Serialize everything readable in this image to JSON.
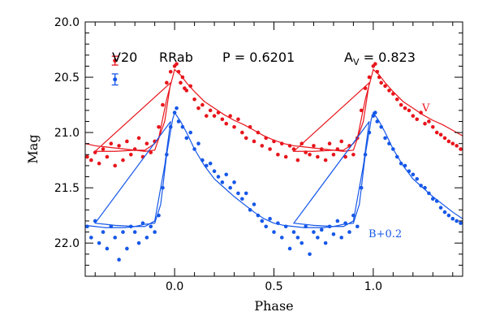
{
  "chart_data": {
    "type": "scatter",
    "header": {
      "star": "V20",
      "type": "RRab",
      "period": "P = 0.6201",
      "amp_label": "A",
      "amp_sub": "V",
      "amp_value": " = 0.823"
    },
    "xlabel": "Phase",
    "ylabel": "Mag",
    "xlim": [
      -0.45,
      1.45
    ],
    "ylim": [
      20.0,
      22.3
    ],
    "y_inverted": true,
    "x_ticks": [
      0.0,
      0.5,
      1.0
    ],
    "x_tick_labels": [
      "0.0",
      "0.5",
      "1.0"
    ],
    "y_ticks": [
      20.0,
      20.5,
      21.0,
      21.5,
      22.0
    ],
    "y_tick_labels": [
      "20.0",
      "20.5",
      "21.0",
      "21.5",
      "22.0"
    ],
    "series": [
      {
        "name": "V",
        "color": "#e8141b",
        "error_bar": {
          "x": -0.3,
          "y": 20.35,
          "err": 0.04
        },
        "template": {
          "x": [
            -0.4,
            -0.3,
            -0.2,
            -0.15,
            -0.1,
            -0.08,
            -0.04,
            -0.01,
            0.0,
            0.03,
            0.06,
            0.1,
            0.15,
            0.2,
            0.25,
            0.3,
            0.35,
            0.4,
            0.45,
            0.5,
            0.55,
            0.6,
            0.65,
            0.7,
            0.75,
            0.8,
            0.85,
            0.9,
            0.95,
            0.98
          ],
          "y": [
            21.17,
            21.17,
            21.16,
            21.16,
            21.1,
            21.05,
            20.7,
            20.5,
            20.43,
            20.48,
            20.55,
            20.63,
            20.72,
            20.78,
            20.84,
            20.89,
            20.93,
            20.98,
            21.03,
            21.07,
            21.1,
            21.12,
            21.13,
            21.14,
            21.15,
            21.16,
            21.17,
            21.16,
            20.9,
            20.55
          ]
        },
        "points": {
          "x": [
            -0.44,
            -0.42,
            -0.4,
            -0.38,
            -0.36,
            -0.34,
            -0.32,
            -0.3,
            -0.28,
            -0.26,
            -0.24,
            -0.22,
            -0.2,
            -0.18,
            -0.16,
            -0.14,
            -0.12,
            -0.1,
            -0.08,
            -0.06,
            -0.04,
            -0.02,
            0.0,
            0.01,
            0.02,
            0.03,
            0.04,
            0.05,
            0.06,
            0.08,
            0.1,
            0.12,
            0.14,
            0.16,
            0.18,
            0.2,
            0.22,
            0.24,
            0.26,
            0.28,
            0.3,
            0.32,
            0.34,
            0.36,
            0.38,
            0.4,
            0.42,
            0.44,
            0.46,
            0.48,
            0.5,
            0.52,
            0.54,
            0.56,
            0.58,
            0.6,
            0.62,
            0.64,
            0.66,
            0.68,
            0.7,
            0.72,
            0.74,
            0.76,
            0.78,
            0.8,
            0.82,
            0.84,
            0.86,
            0.88,
            0.9,
            0.92,
            0.94,
            0.96,
            0.98,
            1.0,
            1.01,
            1.02,
            1.03,
            1.04,
            1.06,
            1.08,
            1.1,
            1.12,
            1.14,
            1.16,
            1.18,
            1.2,
            1.22,
            1.24,
            1.26,
            1.28,
            1.3,
            1.32,
            1.34,
            1.36,
            1.38,
            1.4,
            1.42,
            1.44
          ],
          "y": [
            21.22,
            21.25,
            21.18,
            21.28,
            21.15,
            21.22,
            21.1,
            21.3,
            21.12,
            21.25,
            21.08,
            21.2,
            21.15,
            21.05,
            21.22,
            21.1,
            21.18,
            21.08,
            20.95,
            20.75,
            20.55,
            20.45,
            20.4,
            20.38,
            20.45,
            20.55,
            20.5,
            20.6,
            20.62,
            20.58,
            20.7,
            20.78,
            20.75,
            20.85,
            20.8,
            20.85,
            20.82,
            20.88,
            20.92,
            20.85,
            20.95,
            20.88,
            21.0,
            21.05,
            20.95,
            21.08,
            21.0,
            21.12,
            21.05,
            21.15,
            21.08,
            21.2,
            21.1,
            21.22,
            21.12,
            21.15,
            21.25,
            21.1,
            21.18,
            21.2,
            21.12,
            21.22,
            21.15,
            21.25,
            21.1,
            21.2,
            21.15,
            21.08,
            21.22,
            21.12,
            21.2,
            21.05,
            20.8,
            20.6,
            20.5,
            20.4,
            20.38,
            20.45,
            20.5,
            20.55,
            20.58,
            20.62,
            20.65,
            20.7,
            20.75,
            20.78,
            20.8,
            20.85,
            20.88,
            20.82,
            20.92,
            20.9,
            20.95,
            21.0,
            21.02,
            21.05,
            21.08,
            21.1,
            21.12,
            21.15
          ]
        }
      },
      {
        "name": "B+0.2",
        "color": "#1557e8",
        "error_bar": {
          "x": -0.3,
          "y": 20.52,
          "err": 0.05
        },
        "template": {
          "x": [
            -0.4,
            -0.3,
            -0.2,
            -0.15,
            -0.1,
            -0.07,
            -0.04,
            -0.01,
            0.0,
            0.03,
            0.06,
            0.1,
            0.15,
            0.2,
            0.25,
            0.3,
            0.35,
            0.4,
            0.45,
            0.5,
            0.55,
            0.6,
            0.65,
            0.7,
            0.75,
            0.8,
            0.85,
            0.9,
            0.95,
            0.98
          ],
          "y": [
            21.82,
            21.84,
            21.85,
            21.83,
            21.82,
            21.65,
            21.2,
            20.88,
            20.82,
            20.9,
            21.0,
            21.15,
            21.3,
            21.42,
            21.5,
            21.58,
            21.65,
            21.72,
            21.78,
            21.82,
            21.84,
            21.85,
            21.86,
            21.86,
            21.86,
            21.85,
            21.85,
            21.8,
            21.3,
            20.9
          ]
        },
        "points": {
          "x": [
            -0.44,
            -0.42,
            -0.4,
            -0.38,
            -0.36,
            -0.34,
            -0.32,
            -0.3,
            -0.28,
            -0.26,
            -0.24,
            -0.22,
            -0.2,
            -0.18,
            -0.16,
            -0.14,
            -0.12,
            -0.1,
            -0.08,
            -0.06,
            -0.04,
            -0.02,
            0.0,
            0.01,
            0.02,
            0.04,
            0.06,
            0.08,
            0.1,
            0.12,
            0.14,
            0.16,
            0.18,
            0.2,
            0.22,
            0.24,
            0.26,
            0.28,
            0.3,
            0.32,
            0.34,
            0.36,
            0.38,
            0.4,
            0.42,
            0.44,
            0.46,
            0.48,
            0.5,
            0.52,
            0.54,
            0.56,
            0.58,
            0.6,
            0.62,
            0.64,
            0.66,
            0.68,
            0.7,
            0.72,
            0.74,
            0.76,
            0.78,
            0.8,
            0.82,
            0.84,
            0.86,
            0.88,
            0.9,
            0.92,
            0.94,
            0.96,
            0.98,
            1.0,
            1.01,
            1.02,
            1.04,
            1.06,
            1.08,
            1.1,
            1.12,
            1.14,
            1.16,
            1.18,
            1.2,
            1.22,
            1.24,
            1.26,
            1.28,
            1.3,
            1.32,
            1.34,
            1.36,
            1.38,
            1.4,
            1.42,
            1.44
          ],
          "y": [
            21.85,
            21.95,
            21.8,
            22.0,
            21.9,
            22.05,
            21.85,
            21.95,
            22.15,
            21.9,
            22.05,
            21.85,
            21.9,
            22.0,
            21.82,
            21.95,
            21.85,
            21.9,
            21.75,
            21.5,
            21.2,
            20.95,
            20.82,
            20.78,
            20.9,
            20.95,
            21.05,
            21.0,
            21.15,
            21.1,
            21.25,
            21.3,
            21.28,
            21.35,
            21.4,
            21.45,
            21.38,
            21.5,
            21.45,
            21.55,
            21.6,
            21.55,
            21.7,
            21.65,
            21.75,
            21.8,
            21.85,
            21.78,
            21.9,
            21.82,
            21.95,
            21.85,
            22.05,
            21.9,
            21.95,
            22.0,
            21.85,
            22.1,
            21.9,
            21.95,
            21.88,
            22.0,
            21.85,
            21.92,
            21.8,
            21.95,
            21.82,
            21.9,
            21.75,
            21.85,
            21.5,
            21.2,
            21.0,
            20.85,
            20.82,
            20.9,
            20.95,
            21.05,
            21.1,
            21.15,
            21.22,
            21.28,
            21.3,
            21.35,
            21.38,
            21.42,
            21.48,
            21.5,
            21.55,
            21.6,
            21.62,
            21.68,
            21.72,
            21.75,
            21.78,
            21.8,
            21.82
          ]
        }
      }
    ]
  }
}
